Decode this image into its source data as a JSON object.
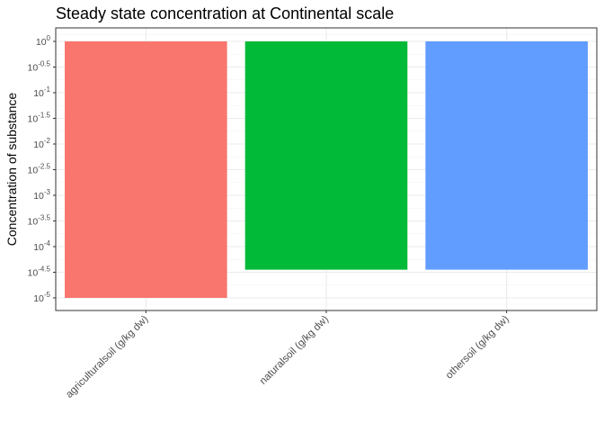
{
  "chart_data": {
    "type": "bar",
    "title": "Steady state concentration at Continental scale",
    "xlabel": "",
    "ylabel": "Concentration of substance",
    "scale": "log10",
    "ylim": [
      1e-05,
      1
    ],
    "yticks": [
      {
        "base": "10",
        "exp": "0"
      },
      {
        "base": "10",
        "exp": "-0.5"
      },
      {
        "base": "10",
        "exp": "-1"
      },
      {
        "base": "10",
        "exp": "-1.5"
      },
      {
        "base": "10",
        "exp": "-2"
      },
      {
        "base": "10",
        "exp": "-2.5"
      },
      {
        "base": "10",
        "exp": "-3"
      },
      {
        "base": "10",
        "exp": "-3.5"
      },
      {
        "base": "10",
        "exp": "-4"
      },
      {
        "base": "10",
        "exp": "-4.5"
      },
      {
        "base": "10",
        "exp": "-5"
      }
    ],
    "categories": [
      "agriculturalsoil (g/kg dw)",
      "naturalsoil (g/kg dw)",
      "othersoil (g/kg dw)"
    ],
    "values": [
      1e-05,
      3.55e-05,
      3.55e-05
    ],
    "colors": [
      "#F8766D",
      "#00BA38",
      "#619CFF"
    ],
    "grid": true,
    "legend": "none"
  }
}
